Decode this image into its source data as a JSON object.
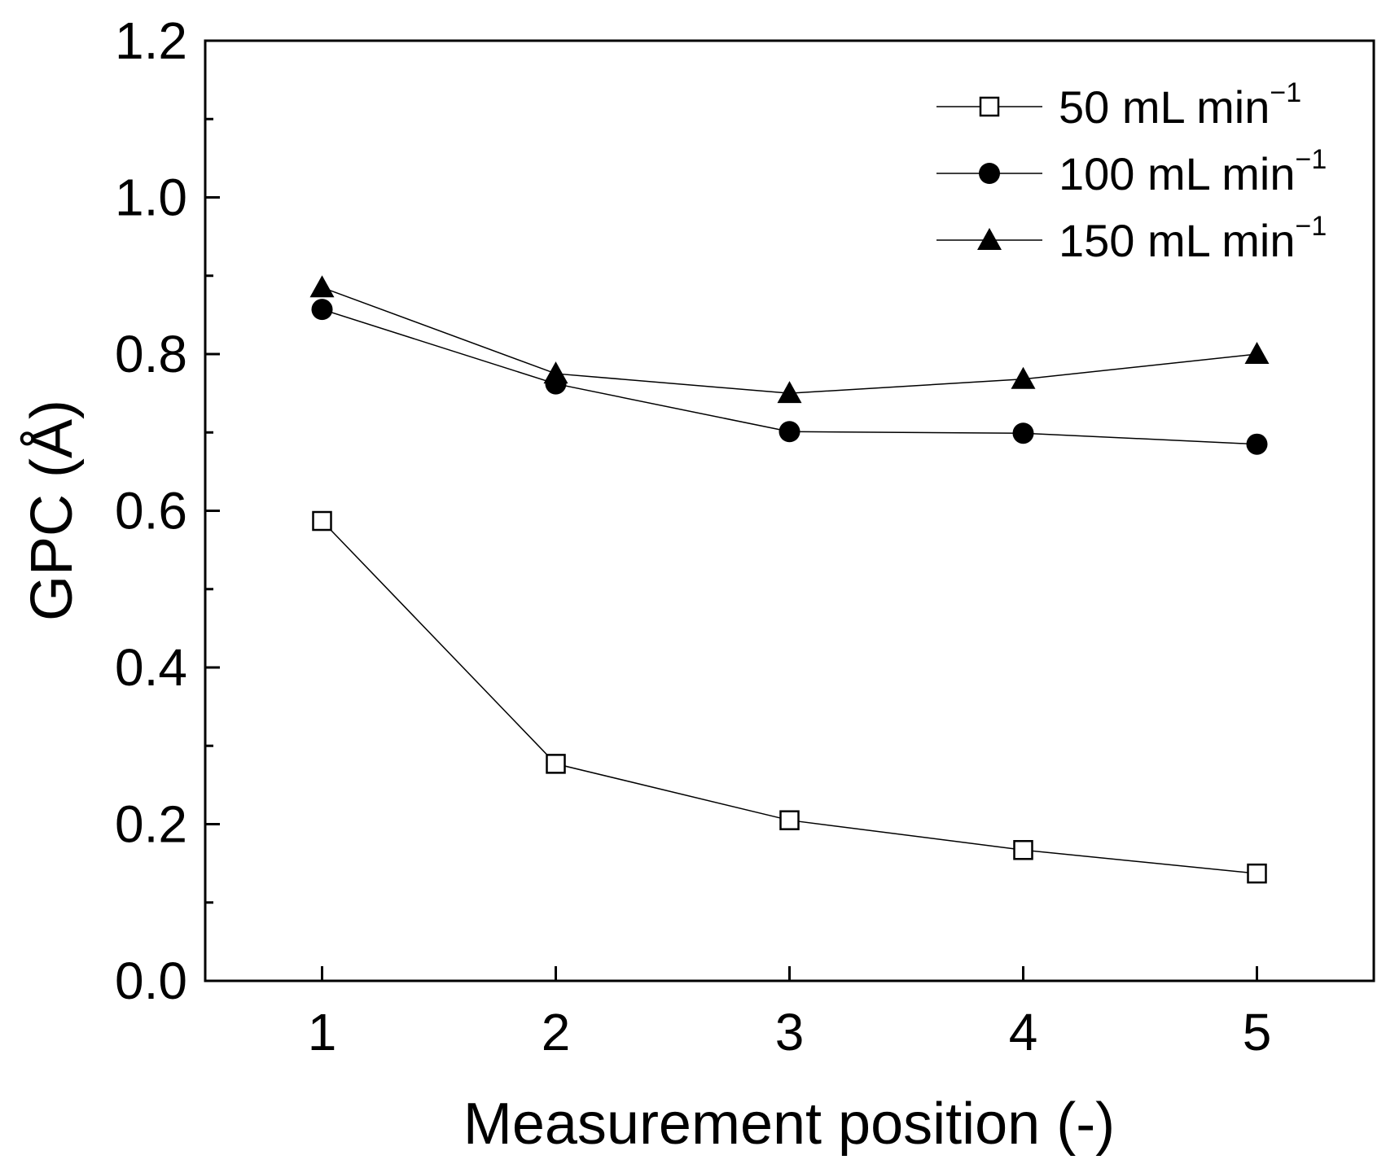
{
  "chart_data": {
    "type": "line",
    "title": "",
    "xlabel": "Measurement position (-)",
    "ylabel": "GPC (Å)",
    "x": [
      1,
      2,
      3,
      4,
      5
    ],
    "xlim": [
      0.5,
      5.5
    ],
    "ylim": [
      0.0,
      1.2
    ],
    "xticks": [
      1,
      2,
      3,
      4,
      5
    ],
    "xtick_labels": [
      "1",
      "2",
      "3",
      "4",
      "5"
    ],
    "yticks": [
      0.0,
      0.2,
      0.4,
      0.6,
      0.8,
      1.0,
      1.2
    ],
    "ytick_labels": [
      "0.0",
      "0.2",
      "0.4",
      "0.6",
      "0.8",
      "1.0",
      "1.2"
    ],
    "grid": false,
    "legend_position": "top-right",
    "series": [
      {
        "name": "50 mL min-1",
        "label_main": "50   mL min",
        "label_sup": "−1",
        "marker": "open-square",
        "values": [
          0.587,
          0.277,
          0.205,
          0.167,
          0.137
        ]
      },
      {
        "name": "100 mL min-1",
        "label_main": "100 mL min",
        "label_sup": "−1",
        "marker": "filled-circle",
        "values": [
          0.857,
          0.762,
          0.701,
          0.699,
          0.685
        ]
      },
      {
        "name": "150 mL min-1",
        "label_main": "150 mL min",
        "label_sup": "−1",
        "marker": "filled-triangle",
        "values": [
          0.885,
          0.775,
          0.75,
          0.768,
          0.8
        ]
      }
    ]
  }
}
